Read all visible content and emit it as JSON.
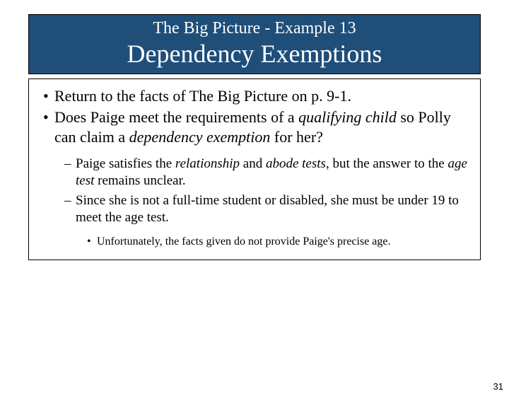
{
  "colors": {
    "header_bg": "#1f4e79",
    "header_text": "#ffffff",
    "border": "#000000",
    "body_text": "#000000",
    "page_bg": "#ffffff"
  },
  "header": {
    "overline": "The Big Picture - Example 13",
    "title": "Dependency Exemptions"
  },
  "bullets_level1": [
    {
      "pre": "Return to the facts of The Big Picture on p. 9-1."
    },
    {
      "pre": "Does Paige meet the requirements of a ",
      "em1": "qualifying child",
      "mid": " so Polly can claim a ",
      "em2": "dependency exemption",
      "post": " for her?"
    }
  ],
  "bullets_level2": [
    {
      "pre": "Paige satisfies the ",
      "em1": "relationship",
      "mid1": " and ",
      "em2": "abode tests",
      "mid2": ", but the answer to the ",
      "em3": "age test",
      "post": " remains unclear."
    },
    {
      "pre": "Since she is not a full-time student or disabled, she must be under 19 to meet the age test."
    }
  ],
  "bullets_level3": [
    {
      "text": "Unfortunately, the facts given do not provide Paige's precise age."
    }
  ],
  "page_number": "31"
}
